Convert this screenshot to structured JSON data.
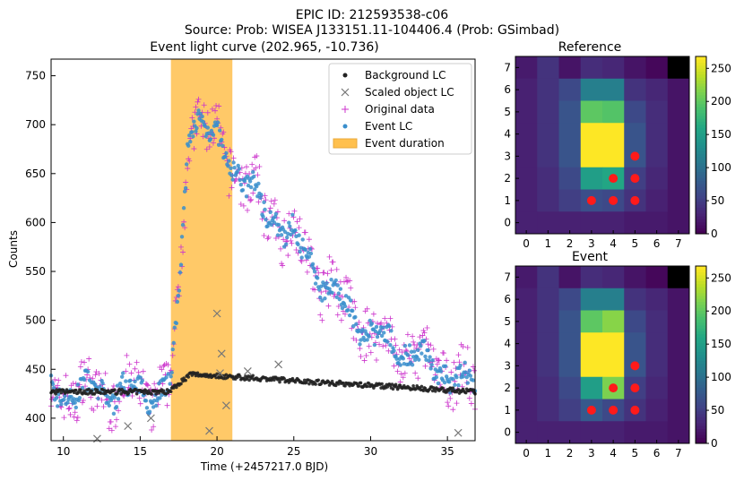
{
  "figure": {
    "title_line1": "EPIC ID: 212593538-c06",
    "title_line2": "Source: Prob: WISEA J133151.11-104406.4 (Prob: GSimbad)"
  },
  "chart_data": [
    {
      "type": "scatter",
      "title": "Event light curve (202.965, -10.736)",
      "xlabel": "Time (+2457217.0 BJD)",
      "ylabel": "Counts",
      "xlim": [
        9.2,
        36.8
      ],
      "ylim": [
        377,
        767
      ],
      "xticks": [
        10,
        15,
        20,
        25,
        30,
        35
      ],
      "yticks": [
        400,
        450,
        500,
        550,
        600,
        650,
        700,
        750
      ],
      "event_duration": [
        17.0,
        21.0
      ],
      "legend_position": "top-right",
      "legend": [
        {
          "key": "background",
          "label": "Background LC"
        },
        {
          "key": "scaled",
          "label": "Scaled object LC"
        },
        {
          "key": "original",
          "label": "Original data"
        },
        {
          "key": "event",
          "label": "Event LC"
        },
        {
          "key": "duration",
          "label": "Event duration"
        }
      ],
      "colors": {
        "background": "#222222",
        "scaled": "#777777",
        "original": "#cc33cc",
        "event": "#3a8fcc",
        "duration": "#ffc04d"
      },
      "series_profile": {
        "baseline": 427,
        "rise_start": 16.6,
        "rise_end": 18.1,
        "peak_value": 710,
        "peak_time": 18.7,
        "plateau_end": 20.4,
        "decay_points": [
          [
            20.4,
            672
          ],
          [
            21.5,
            650
          ],
          [
            23.0,
            615
          ],
          [
            25.0,
            585
          ],
          [
            26.5,
            550
          ],
          [
            28.0,
            520
          ],
          [
            30.0,
            485
          ],
          [
            32.0,
            470
          ],
          [
            33.5,
            458
          ],
          [
            34.5,
            450
          ],
          [
            36.8,
            432
          ]
        ],
        "background_bump": 445
      },
      "scaled_outliers": [
        [
          12.2,
          379
        ],
        [
          14.2,
          392
        ],
        [
          15.7,
          400
        ],
        [
          19.5,
          387
        ],
        [
          20.0,
          507
        ],
        [
          20.2,
          446
        ],
        [
          20.3,
          466
        ],
        [
          20.6,
          413
        ],
        [
          22.0,
          448
        ],
        [
          24.0,
          455
        ],
        [
          35.7,
          385
        ]
      ]
    },
    {
      "type": "heatmap",
      "title": "Reference",
      "colorbar_ticks": [
        0,
        50,
        100,
        150,
        200,
        250
      ],
      "vmin": 0,
      "vmax": 268,
      "axis_ticks": [
        "0",
        "1",
        "2",
        "3",
        "4",
        "5",
        "6",
        "7"
      ],
      "grid": [
        [
          20,
          40,
          15,
          35,
          30,
          15,
          5,
          0
        ],
        [
          25,
          40,
          60,
          115,
          115,
          40,
          30,
          15
        ],
        [
          25,
          40,
          70,
          200,
          195,
          60,
          35,
          15
        ],
        [
          25,
          40,
          70,
          268,
          268,
          70,
          35,
          15
        ],
        [
          25,
          40,
          70,
          268,
          268,
          70,
          35,
          15
        ],
        [
          25,
          35,
          60,
          150,
          160,
          50,
          30,
          15
        ],
        [
          25,
          35,
          50,
          65,
          60,
          40,
          25,
          15
        ],
        [
          25,
          25,
          25,
          25,
          25,
          20,
          20,
          15
        ]
      ],
      "markers": [
        [
          5,
          3
        ],
        [
          4,
          2
        ],
        [
          5,
          2
        ],
        [
          3,
          1
        ],
        [
          4,
          1
        ],
        [
          5,
          1
        ]
      ]
    },
    {
      "type": "heatmap",
      "title": "Event",
      "colorbar_ticks": [
        0,
        50,
        100,
        150,
        200,
        250
      ],
      "vmin": 0,
      "vmax": 268,
      "axis_ticks": [
        "0",
        "1",
        "2",
        "3",
        "4",
        "5",
        "6",
        "7"
      ],
      "grid": [
        [
          20,
          40,
          15,
          35,
          30,
          15,
          5,
          0
        ],
        [
          25,
          40,
          60,
          115,
          115,
          40,
          30,
          15
        ],
        [
          25,
          40,
          70,
          200,
          220,
          60,
          35,
          15
        ],
        [
          25,
          40,
          70,
          268,
          268,
          70,
          35,
          15
        ],
        [
          25,
          40,
          70,
          268,
          268,
          70,
          35,
          15
        ],
        [
          25,
          35,
          60,
          150,
          215,
          50,
          30,
          15
        ],
        [
          25,
          35,
          50,
          75,
          60,
          40,
          25,
          15
        ],
        [
          25,
          25,
          25,
          25,
          25,
          20,
          20,
          15
        ]
      ],
      "markers": [
        [
          5,
          3
        ],
        [
          4,
          2
        ],
        [
          5,
          2
        ],
        [
          3,
          1
        ],
        [
          4,
          1
        ],
        [
          5,
          1
        ]
      ]
    }
  ]
}
